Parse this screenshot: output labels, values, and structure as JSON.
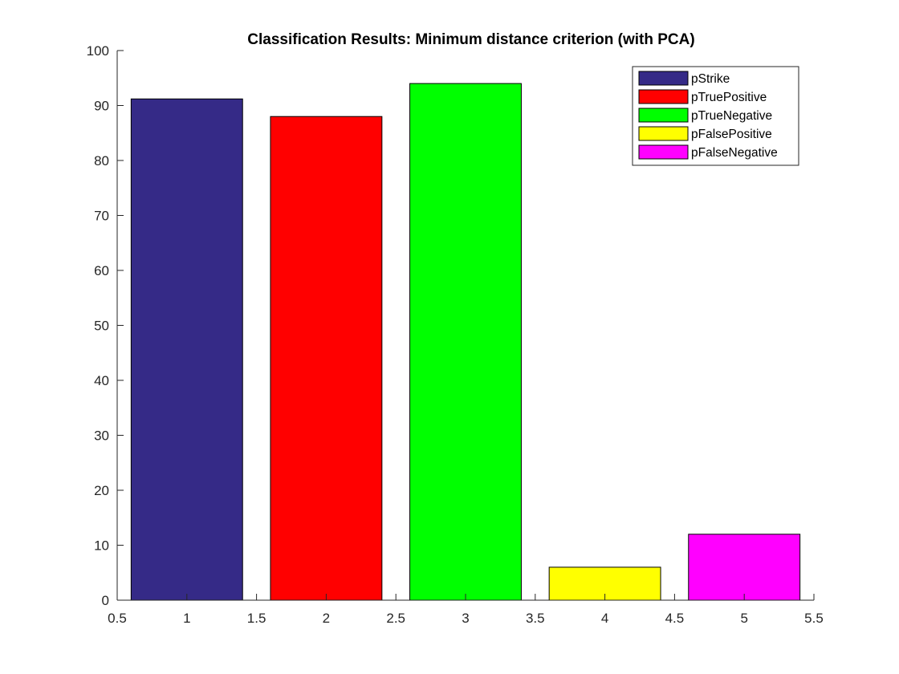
{
  "chart_data": {
    "type": "bar",
    "title": "Classification Results: Minimum distance criterion (with PCA)",
    "xlabel": "",
    "ylabel": "",
    "xlim": [
      0.5,
      5.5
    ],
    "ylim": [
      0,
      100
    ],
    "xticks": [
      "0.5",
      "1",
      "1.5",
      "2",
      "2.5",
      "3",
      "3.5",
      "4",
      "4.5",
      "5",
      "5.5"
    ],
    "yticks": [
      "0",
      "10",
      "20",
      "30",
      "40",
      "50",
      "60",
      "70",
      "80",
      "90",
      "100"
    ],
    "grid": false,
    "legend_position": "top-right",
    "series": [
      {
        "name": "pStrike",
        "x": 1,
        "value": 91.2,
        "color": "#352a87"
      },
      {
        "name": "pTruePositive",
        "x": 2,
        "value": 88,
        "color": "#ff0000"
      },
      {
        "name": "pTrueNegative",
        "x": 3,
        "value": 94,
        "color": "#00ff00"
      },
      {
        "name": "pFalsePositive",
        "x": 4,
        "value": 6,
        "color": "#ffff00"
      },
      {
        "name": "pFalseNegative",
        "x": 5,
        "value": 12,
        "color": "#ff00ff"
      }
    ]
  }
}
